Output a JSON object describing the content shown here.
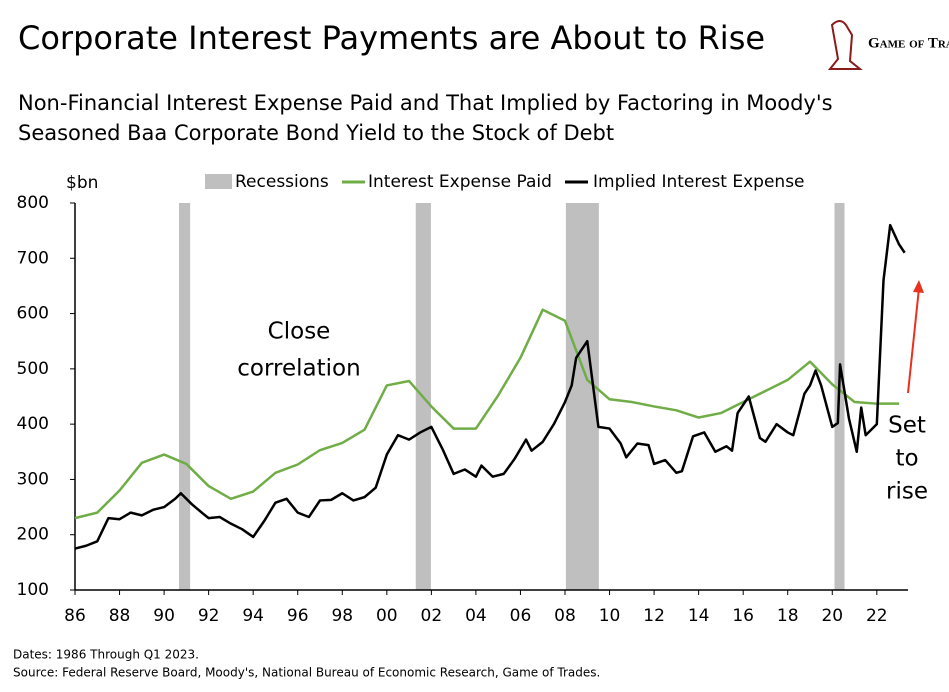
{
  "chart_data": {
    "type": "line",
    "title": "Corporate Interest Payments are About to Rise",
    "subtitle": [
      "Non-Financial Interest Expense Paid and That Implied by Factoring in Moody's",
      "Seasoned Baa Corporate Bond Yield to the Stock of Debt"
    ],
    "logo": "Game of Trades",
    "y_label": "$bn",
    "xlim": [
      1986,
      2023.4
    ],
    "xticks": [
      {
        "value": 1986,
        "label": "86"
      },
      {
        "value": 1988,
        "label": "88"
      },
      {
        "value": 1990,
        "label": "90"
      },
      {
        "value": 1992,
        "label": "92"
      },
      {
        "value": 1994,
        "label": "94"
      },
      {
        "value": 1996,
        "label": "96"
      },
      {
        "value": 1998,
        "label": "98"
      },
      {
        "value": 2000,
        "label": "00"
      },
      {
        "value": 2002,
        "label": "02"
      },
      {
        "value": 2004,
        "label": "04"
      },
      {
        "value": 2006,
        "label": "06"
      },
      {
        "value": 2008,
        "label": "08"
      },
      {
        "value": 2010,
        "label": "10"
      },
      {
        "value": 2012,
        "label": "12"
      },
      {
        "value": 2014,
        "label": "14"
      },
      {
        "value": 2016,
        "label": "16"
      },
      {
        "value": 2018,
        "label": "18"
      },
      {
        "value": 2020,
        "label": "20"
      },
      {
        "value": 2022,
        "label": "22"
      }
    ],
    "ylim": [
      100,
      800
    ],
    "yticks": [
      100,
      200,
      300,
      400,
      500,
      600,
      700,
      800
    ],
    "recessions": {
      "name": "Recessions",
      "color": "#bfbfbf",
      "periods": [
        [
          1990.67,
          1991.17
        ],
        [
          2001.3,
          2001.98
        ],
        [
          2008.04,
          2009.52
        ],
        [
          2020.1,
          2020.55
        ]
      ]
    },
    "series": [
      {
        "name": "Interest Expense Paid",
        "color": "#70ad47",
        "x": [
          1986,
          1987,
          1988,
          1989,
          1990,
          1991,
          1992,
          1993,
          1994,
          1995,
          1996,
          1997,
          1998,
          1999,
          2000,
          2001,
          2002,
          2003,
          2004,
          2005,
          2006,
          2007,
          2008,
          2009,
          2010,
          2011,
          2012,
          2013,
          2014,
          2015,
          2016,
          2017,
          2018,
          2019,
          2020,
          2021,
          2022,
          2023
        ],
        "values": [
          230,
          240,
          280,
          330,
          345,
          328,
          288,
          265,
          278,
          312,
          327,
          353,
          366,
          390,
          470,
          478,
          432,
          392,
          392,
          452,
          520,
          607,
          587,
          480,
          445,
          440,
          432,
          425,
          412,
          420,
          440,
          460,
          480,
          513,
          472,
          440,
          437,
          437
        ]
      },
      {
        "name": "Implied Interest Expense",
        "color": "#000000",
        "x": [
          1986,
          1986.5,
          1987,
          1987.5,
          1988,
          1988.5,
          1989,
          1989.5,
          1990,
          1990.5,
          1990.75,
          1991.25,
          1991.75,
          1992,
          1992.5,
          1993,
          1993.5,
          1994,
          1994.5,
          1995,
          1995.5,
          1996,
          1996.5,
          1997,
          1997.5,
          1998,
          1998.5,
          1999,
          1999.5,
          2000,
          2000.5,
          2001,
          2001.5,
          2002,
          2002.5,
          2003,
          2003.5,
          2004,
          2004.25,
          2004.75,
          2005.25,
          2005.75,
          2006.25,
          2006.5,
          2007,
          2007.5,
          2008,
          2008.3,
          2008.5,
          2009,
          2009.5,
          2010,
          2010.5,
          2010.75,
          2011.25,
          2011.75,
          2012,
          2012.5,
          2013,
          2013.25,
          2013.75,
          2014.25,
          2014.75,
          2015.25,
          2015.5,
          2015.75,
          2016.25,
          2016.75,
          2017,
          2017.5,
          2018,
          2018.25,
          2018.75,
          2019,
          2019.25,
          2019.5,
          2020,
          2020.25,
          2020.35,
          2020.75,
          2021.1,
          2021.3,
          2021.5,
          2022,
          2022.3,
          2022.6,
          2023,
          2023.25
        ],
        "values": [
          175,
          180,
          188,
          230,
          228,
          240,
          235,
          245,
          250,
          265,
          275,
          255,
          238,
          230,
          232,
          220,
          210,
          196,
          225,
          258,
          265,
          240,
          232,
          262,
          263,
          275,
          262,
          268,
          285,
          345,
          380,
          372,
          385,
          395,
          355,
          310,
          318,
          305,
          325,
          305,
          310,
          338,
          372,
          352,
          368,
          400,
          440,
          470,
          520,
          550,
          395,
          392,
          365,
          340,
          365,
          362,
          328,
          335,
          312,
          315,
          378,
          385,
          350,
          360,
          352,
          420,
          450,
          375,
          368,
          400,
          385,
          380,
          455,
          470,
          497,
          470,
          395,
          402,
          508,
          410,
          350,
          430,
          380,
          400,
          660,
          760,
          725,
          710
        ]
      }
    ],
    "annotations": [
      [
        "Close",
        "correlation"
      ],
      [
        "Set",
        "to",
        "rise"
      ]
    ],
    "notes": [
      "Dates: 1986 Through Q1 2023.",
      "Source: Federal Reserve Board, Moody's, National Bureau of Economic Research, Game of Trades."
    ]
  }
}
